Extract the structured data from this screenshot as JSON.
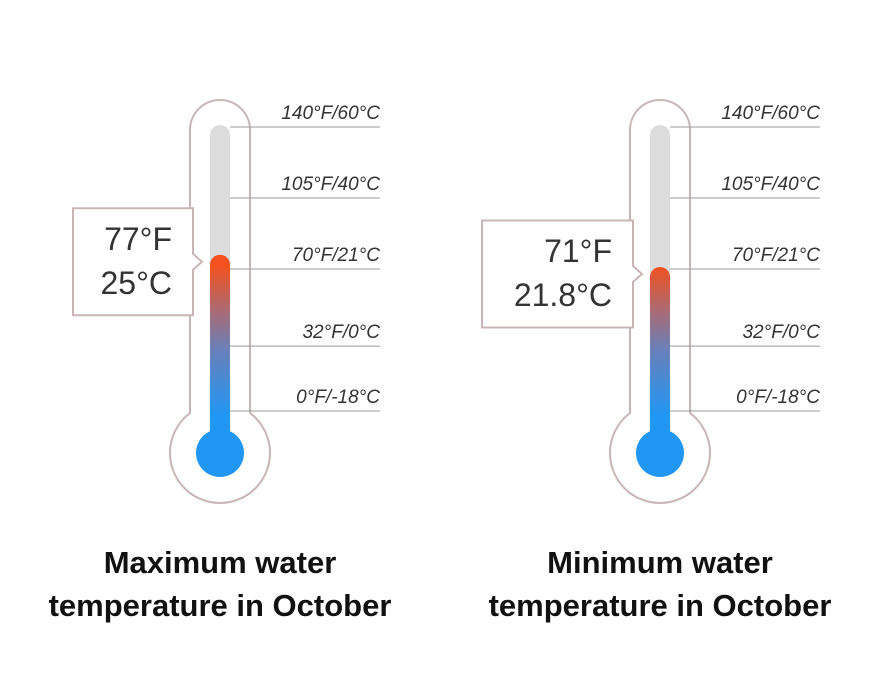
{
  "chart_data": [
    {
      "type": "thermometer",
      "title_lines": [
        "Maximum water",
        "temperature in October"
      ],
      "values": [
        77
      ],
      "value_labels": [
        "77°F"
      ],
      "secondary_labels": [
        "25°C"
      ],
      "ylim": [
        0,
        140
      ],
      "yticks": [
        {
          "value": 140,
          "label": "140°F/60°C"
        },
        {
          "value": 105,
          "label": "105°F/40°C"
        },
        {
          "value": 70,
          "label": "70°F/21°C"
        },
        {
          "value": 32,
          "label": "32°F/0°C"
        },
        {
          "value": 0,
          "label": "0°F/-18°C"
        }
      ]
    },
    {
      "type": "thermometer",
      "title_lines": [
        "Minimum water",
        "temperature in October"
      ],
      "values": [
        71
      ],
      "value_labels": [
        "71°F"
      ],
      "secondary_labels": [
        "21.8°C"
      ],
      "ylim": [
        0,
        140
      ],
      "yticks": [
        {
          "value": 140,
          "label": "140°F/60°C"
        },
        {
          "value": 105,
          "label": "105°F/40°C"
        },
        {
          "value": 70,
          "label": "70°F/21°C"
        },
        {
          "value": 32,
          "label": "32°F/0°C"
        },
        {
          "value": 0,
          "label": "0°F/-18°C"
        }
      ]
    }
  ]
}
